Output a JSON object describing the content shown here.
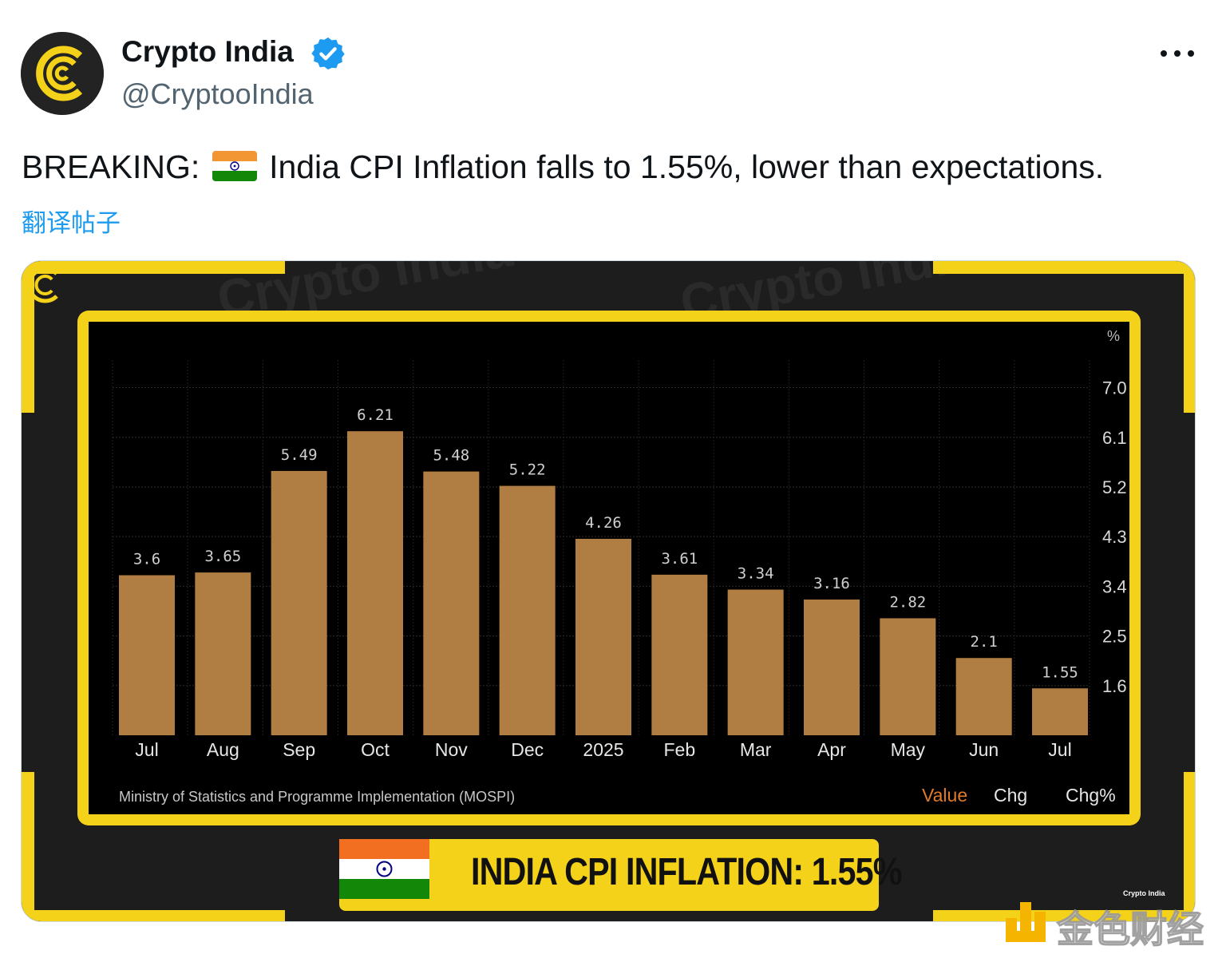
{
  "author": {
    "name": "Crypto India",
    "handle": "@CryptooIndia",
    "verified": true,
    "avatar_icon": "crypto-india-logo"
  },
  "tweet": {
    "text_before": "BREAKING: ",
    "flag_icon": "india-flag",
    "text_after": " India CPI Inflation falls to 1.55%, lower than expectations.",
    "translate_label": "翻译帖子"
  },
  "image": {
    "banner_text": "INDIA CPI INFLATION: 1.55%",
    "logo_text": "Crypto India",
    "watermark_text": "金色财经",
    "bg_watermark_text": "Crypto India"
  },
  "colors": {
    "accent_yellow": "#f5d21a",
    "bar_color": "#b07d43",
    "link_blue": "#1d9bf0",
    "verified_blue": "#1d9bf0",
    "legend_active": "#e07b2a"
  },
  "chart_data": {
    "type": "bar",
    "unit_label": "%",
    "categories": [
      "Jul",
      "Aug",
      "Sep",
      "Oct",
      "Nov",
      "Dec",
      "2025",
      "Feb",
      "Mar",
      "Apr",
      "May",
      "Jun",
      "Jul"
    ],
    "values": [
      3.6,
      3.65,
      5.49,
      6.21,
      5.48,
      5.22,
      4.26,
      3.61,
      3.34,
      3.16,
      2.82,
      2.1,
      1.55
    ],
    "value_labels": [
      "3.6",
      "3.65",
      "5.49",
      "6.21",
      "5.48",
      "5.22",
      "4.26",
      "3.61",
      "3.34",
      "3.16",
      "2.82",
      "2.1",
      "1.55"
    ],
    "yticks": [
      "7.0",
      "6.1",
      "5.2",
      "4.3",
      "3.4",
      "2.5",
      "1.6"
    ],
    "ytick_values": [
      7.0,
      6.1,
      5.2,
      4.3,
      3.4,
      2.5,
      1.6
    ],
    "ylim": [
      0.7,
      7.5
    ],
    "source": "Ministry of Statistics and Programme Implementation (MOSPI)",
    "legend": [
      "Value",
      "Chg",
      "Chg%"
    ],
    "legend_active": "Value",
    "grid": true
  }
}
